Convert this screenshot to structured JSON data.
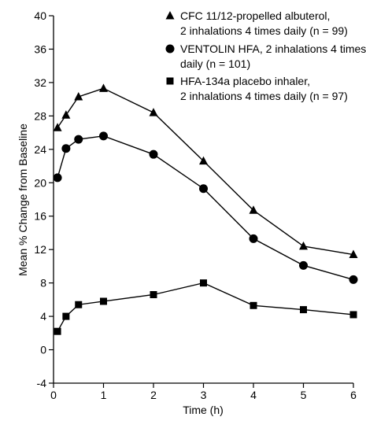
{
  "chart_data": {
    "type": "line",
    "title": "",
    "xlabel": "Time (h)",
    "ylabel": "Mean % Change from Baseline",
    "xlim": [
      0,
      6
    ],
    "ylim": [
      -4,
      40
    ],
    "xticks": [
      0,
      1,
      2,
      3,
      4,
      5,
      6
    ],
    "yticks": [
      -4,
      0,
      4,
      8,
      12,
      16,
      20,
      24,
      28,
      32,
      36,
      40
    ],
    "grid": false,
    "legend_position": "top-right",
    "series": [
      {
        "name": "CFC 11/12-propelled albuterol, 2 inhalations 4 times daily (n = 99)",
        "legend_lines": [
          "CFC 11/12-propelled albuterol,",
          "2 inhalations 4 times daily (n = 99)"
        ],
        "marker": "triangle",
        "x": [
          0.08,
          0.25,
          0.5,
          1,
          2,
          3,
          4,
          5,
          6
        ],
        "y": [
          26.6,
          28.1,
          30.3,
          31.3,
          28.4,
          22.6,
          16.7,
          12.4,
          11.4
        ]
      },
      {
        "name": "VENTOLIN HFA, 2 inhalations 4 times daily (n = 101)",
        "legend_lines": [
          "VENTOLIN HFA, 2 inhalations 4 times",
          "daily (n = 101)"
        ],
        "marker": "circle",
        "x": [
          0.08,
          0.25,
          0.5,
          1,
          2,
          3,
          4,
          5,
          6
        ],
        "y": [
          20.6,
          24.1,
          25.2,
          25.6,
          23.4,
          19.3,
          13.3,
          10.1,
          8.4
        ]
      },
      {
        "name": "HFA-134a placebo inhaler, 2 inhalations 4 times daily (n = 97)",
        "legend_lines": [
          "HFA-134a placebo inhaler,",
          "2 inhalations 4 times daily (n = 97)"
        ],
        "marker": "square",
        "x": [
          0.08,
          0.25,
          0.5,
          1,
          2,
          3,
          4,
          5,
          6
        ],
        "y": [
          2.2,
          4.0,
          5.4,
          5.8,
          6.6,
          8.0,
          5.3,
          4.8,
          4.2
        ]
      }
    ]
  }
}
